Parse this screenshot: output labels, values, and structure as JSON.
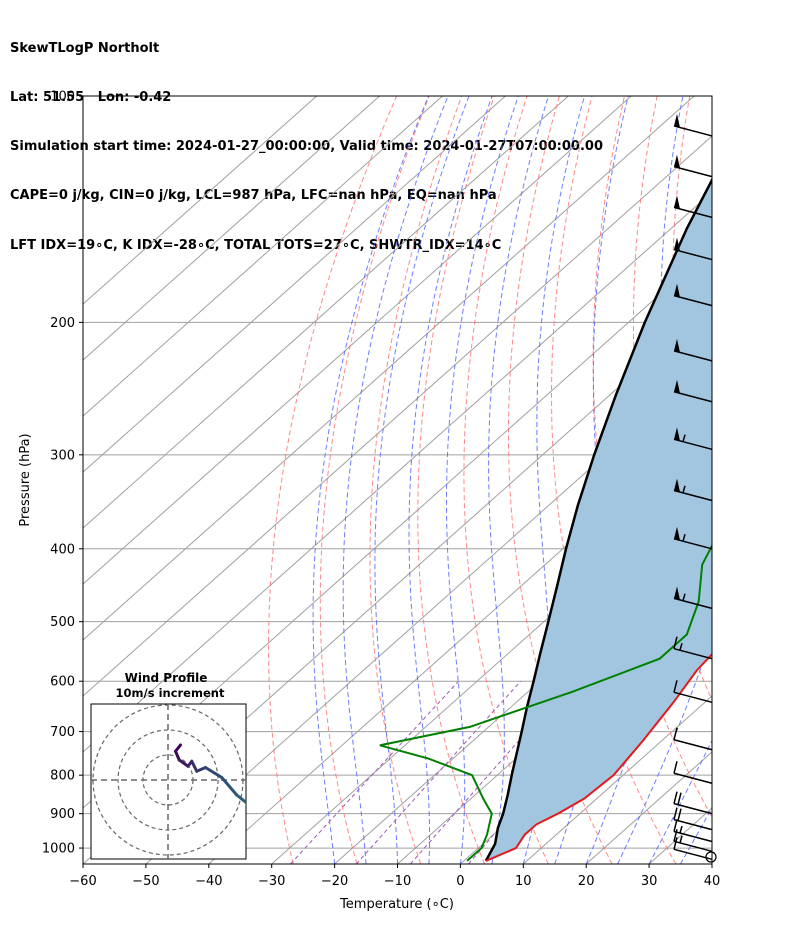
{
  "header": {
    "line1": "SkewTLogP Northolt",
    "line2": "Lat: 51.55   Lon: -0.42",
    "line3": "Simulation start time: 2024-01-27_00:00:00, Valid time: 2024-01-27T07:00:00.00",
    "line4": "CAPE=0 j/kg, CIN=0 j/kg, LCL=987 hPa, LFC=nan hPa, EQ=nan hPa",
    "line5": "LFT IDX=19∘C, K IDX=-28∘C, TOTAL TOTS=27∘C, SHWTR_IDX=14∘C"
  },
  "colors": {
    "temperature": "#e31a1c",
    "dewpoint": "#008000",
    "parcel": "#000000",
    "shading": "#a3c6e0",
    "dry_adiabats": "#ff6b6b",
    "moist_adiabats": "#5566ff",
    "mixing_ratio": "#9b59b6",
    "isotherms": "#a0a0a0"
  },
  "chart_data": {
    "type": "line",
    "xlabel": "Temperature (∘C)",
    "ylabel": "Pressure (hPa)",
    "xlim": [
      -60,
      40
    ],
    "ylim": [
      1050,
      100
    ],
    "y_scale": "log",
    "skew": true,
    "grid": true,
    "x_ticks": [
      "−60",
      "−50",
      "−40",
      "−30",
      "−20",
      "−10",
      "0",
      "10",
      "20",
      "30",
      "40"
    ],
    "y_ticks": [
      "100",
      "200",
      "300",
      "400",
      "500",
      "600",
      "700",
      "800",
      "900",
      "1000"
    ],
    "series": [
      {
        "role": "temperature",
        "points": [
          [
            1040,
            3.5
          ],
          [
            1000,
            6
          ],
          [
            960,
            5
          ],
          [
            930,
            5
          ],
          [
            900,
            6.5
          ],
          [
            860,
            8
          ],
          [
            800,
            8.5
          ],
          [
            720,
            7
          ],
          [
            640,
            5
          ],
          [
            580,
            3
          ],
          [
            520,
            2
          ],
          [
            480,
            0
          ],
          [
            420,
            -3
          ],
          [
            360,
            -8
          ],
          [
            300,
            -13
          ],
          [
            260,
            -19
          ],
          [
            240,
            -21
          ],
          [
            220,
            -19
          ],
          [
            200,
            -17
          ],
          [
            185,
            -14
          ],
          [
            170,
            -7
          ],
          [
            150,
            -1
          ],
          [
            130,
            2
          ],
          [
            115,
            5
          ],
          [
            100,
            8
          ]
        ]
      },
      {
        "role": "dewpoint",
        "points": [
          [
            1040,
            0.5
          ],
          [
            1000,
            0.5
          ],
          [
            960,
            -1
          ],
          [
            900,
            -4
          ],
          [
            860,
            -8
          ],
          [
            800,
            -14
          ],
          [
            760,
            -24
          ],
          [
            730,
            -34
          ],
          [
            690,
            -23
          ],
          [
            620,
            -13
          ],
          [
            560,
            -5
          ],
          [
            520,
            -5
          ],
          [
            470,
            -9
          ],
          [
            420,
            -15
          ],
          [
            370,
            -19
          ],
          [
            330,
            -23
          ],
          [
            290,
            -29
          ],
          [
            270,
            -27
          ],
          [
            240,
            -32
          ],
          [
            215,
            -34
          ],
          [
            190,
            -34
          ],
          [
            170,
            -32
          ],
          [
            155,
            -29
          ],
          [
            140,
            -30
          ],
          [
            130,
            -29
          ],
          [
            120,
            -28
          ],
          [
            110,
            -24
          ],
          [
            100,
            -20
          ]
        ]
      },
      {
        "role": "parcel",
        "points": [
          [
            1040,
            3.5
          ],
          [
            987,
            1.9
          ],
          [
            940,
            -0.5
          ],
          [
            900,
            -2.2
          ],
          [
            850,
            -4.8
          ],
          [
            800,
            -7.7
          ],
          [
            750,
            -10.7
          ],
          [
            700,
            -13.9
          ],
          [
            650,
            -17.4
          ],
          [
            600,
            -21.0
          ],
          [
            550,
            -25.0
          ],
          [
            500,
            -29.3
          ],
          [
            450,
            -34.1
          ],
          [
            400,
            -39.5
          ],
          [
            350,
            -45.4
          ],
          [
            300,
            -51.8
          ],
          [
            250,
            -59.0
          ],
          [
            200,
            -67.4
          ],
          [
            150,
            -77.5
          ],
          [
            120,
            -84.5
          ],
          [
            100,
            -90
          ]
        ]
      }
    ],
    "wind_barbs": [
      {
        "p": 1035,
        "speed_kt": 10
      },
      {
        "p": 1010,
        "speed_kt": 15
      },
      {
        "p": 980,
        "speed_kt": 15
      },
      {
        "p": 945,
        "speed_kt": 20
      },
      {
        "p": 900,
        "speed_kt": 20
      },
      {
        "p": 820,
        "speed_kt": 10
      },
      {
        "p": 740,
        "speed_kt": 10
      },
      {
        "p": 640,
        "speed_kt": 10
      },
      {
        "p": 560,
        "speed_kt": 15
      },
      {
        "p": 480,
        "speed_kt": 55
      },
      {
        "p": 400,
        "speed_kt": 55
      },
      {
        "p": 345,
        "speed_kt": 55
      },
      {
        "p": 295,
        "speed_kt": 55
      },
      {
        "p": 255,
        "speed_kt": 50
      },
      {
        "p": 225,
        "speed_kt": 50
      },
      {
        "p": 190,
        "speed_kt": 50
      },
      {
        "p": 165,
        "speed_kt": 50
      },
      {
        "p": 145,
        "speed_kt": 50
      },
      {
        "p": 128,
        "speed_kt": 50
      },
      {
        "p": 113,
        "speed_kt": 50
      }
    ],
    "wind_profile": {
      "title": "Wind Profile",
      "subtitle": "10m/s increment",
      "rings": 3,
      "hodograph": [
        [
          1.0,
          2.8
        ],
        [
          0.6,
          2.3
        ],
        [
          0.9,
          1.6
        ],
        [
          1.6,
          1.1
        ],
        [
          1.9,
          1.5
        ],
        [
          2.3,
          0.7
        ],
        [
          3.0,
          1.0
        ],
        [
          4.3,
          0.2
        ],
        [
          5.5,
          -1.2
        ],
        [
          7.0,
          -2.4
        ],
        [
          8.5,
          -3.6
        ],
        [
          10.0,
          -4.6
        ],
        [
          11.0,
          -5.5
        ]
      ]
    }
  }
}
